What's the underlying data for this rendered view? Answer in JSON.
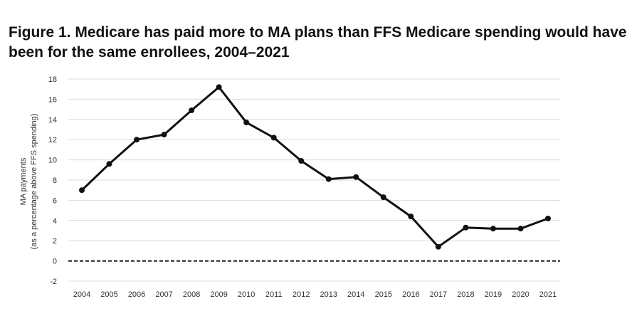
{
  "figure": {
    "title_line1": "Figure 1.  Medicare has paid more to MA plans than FFS Medicare spending would have",
    "title_line2": "been for the same enrollees, 2004–2021"
  },
  "chart_data": {
    "type": "line",
    "title": "Figure 1.  Medicare has paid more to MA plans than FFS Medicare spending would have been for the same enrollees, 2004–2021",
    "xlabel": "",
    "ylabel_line1": "MA payments",
    "ylabel_line2": "(as a percentage above FFS spending)",
    "categories": [
      "2004",
      "2005",
      "2006",
      "2007",
      "2008",
      "2009",
      "2010",
      "2011",
      "2012",
      "2013",
      "2014",
      "2015",
      "2016",
      "2017",
      "2018",
      "2019",
      "2020",
      "2021"
    ],
    "series": [
      {
        "values": [
          7.0,
          9.6,
          12.0,
          12.5,
          14.9,
          17.2,
          13.7,
          12.2,
          9.9,
          8.1,
          8.3,
          6.3,
          4.4,
          1.4,
          3.3,
          3.2,
          3.2,
          4.2
        ]
      }
    ],
    "ylim": [
      -2,
      18
    ],
    "yticks": [
      -2,
      0,
      2,
      4,
      6,
      8,
      10,
      12,
      14,
      16,
      18
    ],
    "reference_line": 0,
    "grid": true,
    "line_color": "#111111",
    "grid_color": "#d9d9d9"
  }
}
